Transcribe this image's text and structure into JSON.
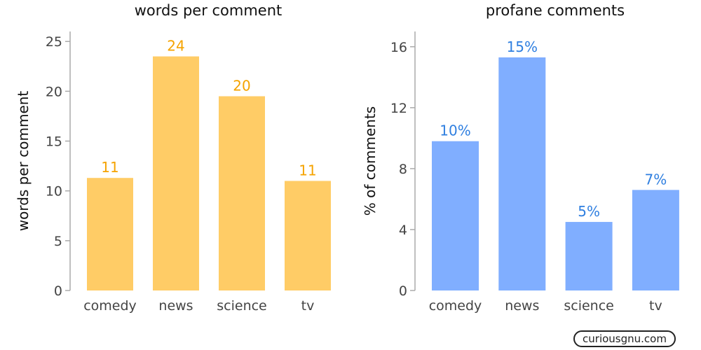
{
  "chart_data": [
    {
      "type": "bar",
      "title": "words per comment",
      "ylabel": "words per comment",
      "categories": [
        "comedy",
        "news",
        "science",
        "tv"
      ],
      "values": [
        11.3,
        23.5,
        19.5,
        11.0
      ],
      "data_labels": [
        "11",
        "24",
        "20",
        "11"
      ],
      "ylim": [
        0,
        26
      ],
      "yticks": [
        0,
        5,
        10,
        15,
        20,
        25
      ],
      "color": "#ffcc66",
      "label_color": "#f5a300",
      "grid": false
    },
    {
      "type": "bar",
      "title": "profane comments",
      "ylabel": "% of comments",
      "categories": [
        "comedy",
        "news",
        "science",
        "tv"
      ],
      "values": [
        9.8,
        15.3,
        4.5,
        6.6
      ],
      "data_labels": [
        "10%",
        "15%",
        "5%",
        "7%"
      ],
      "ylim": [
        0,
        17
      ],
      "yticks": [
        0,
        4,
        8,
        12,
        16
      ],
      "color": "#80aeff",
      "label_color": "#2f7fe0",
      "grid": false
    }
  ],
  "watermark": "curiousgnu.com"
}
